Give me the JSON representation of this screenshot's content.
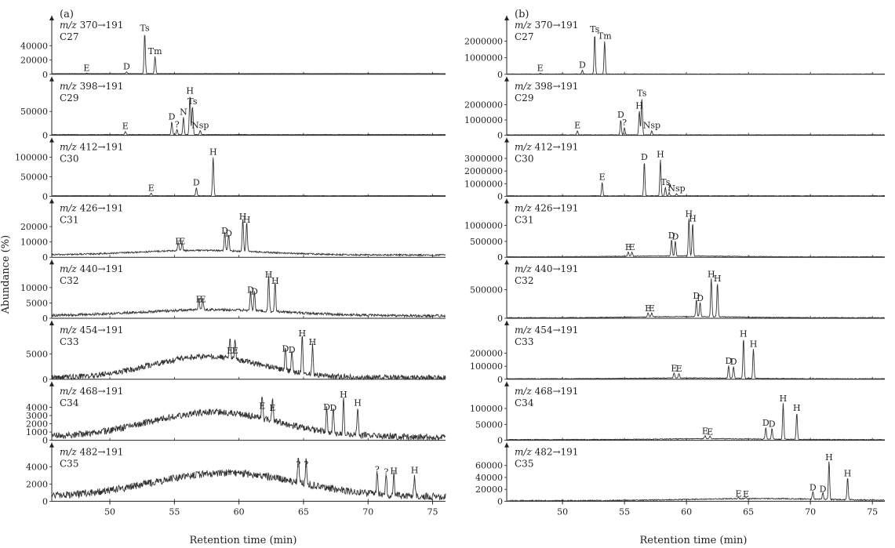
{
  "figure": {
    "x_axis_label": "Retention time (min)",
    "y_axis_label": "Abundance (%)",
    "x_range": [
      45.5,
      76
    ],
    "x_ticks": [
      50,
      55,
      60,
      65,
      70,
      75
    ]
  },
  "chart_data": [
    {
      "type": "line",
      "column": "a",
      "panel_label": "(a)",
      "transition": "370→191",
      "carbon": "C27",
      "ylim": [
        0,
        60000
      ],
      "yticks": [
        0,
        20000,
        40000
      ],
      "peaks": [
        {
          "label": "E",
          "x": 48.2,
          "y": 1500
        },
        {
          "label": "D",
          "x": 51.3,
          "y": 3500
        },
        {
          "label": "Ts",
          "x": 52.7,
          "y": 57000
        },
        {
          "label": "Tm",
          "x": 53.5,
          "y": 25000
        }
      ],
      "baseline": {
        "level": 1000,
        "hump_height": 0,
        "hump_center": 58,
        "hump_width": 8,
        "noise": 200
      }
    },
    {
      "type": "line",
      "column": "b",
      "panel_label": "(b)",
      "transition": "370→191",
      "carbon": "C27",
      "ylim": [
        0,
        2600000
      ],
      "yticks": [
        0,
        1000000,
        2000000
      ],
      "peaks": [
        {
          "label": "E",
          "x": 48.2,
          "y": 60000
        },
        {
          "label": "D",
          "x": 51.6,
          "y": 250000
        },
        {
          "label": "Ts",
          "x": 52.6,
          "y": 2400000
        },
        {
          "label": "Tm",
          "x": 53.4,
          "y": 2000000
        }
      ],
      "baseline": {
        "level": 20000,
        "hump_height": 0,
        "hump_center": 58,
        "hump_width": 8,
        "noise": 10000
      }
    },
    {
      "type": "line",
      "column": "a",
      "transition": "398→191",
      "carbon": "C29",
      "ylim": [
        0,
        90000
      ],
      "yticks": [
        0,
        50000
      ],
      "peaks": [
        {
          "label": "E",
          "x": 51.2,
          "y": 8000
        },
        {
          "label": "D",
          "x": 54.8,
          "y": 28000
        },
        {
          "label": "?",
          "x": 55.2,
          "y": 12000
        },
        {
          "label": "N",
          "x": 55.7,
          "y": 38000
        },
        {
          "label": "H",
          "x": 56.2,
          "y": 82000
        },
        {
          "label": "Ts",
          "x": 56.4,
          "y": 60000
        },
        {
          "label": "Nsp",
          "x": 57.0,
          "y": 10000
        }
      ],
      "baseline": {
        "level": 1500,
        "hump_height": 0,
        "hump_center": 58,
        "hump_width": 8,
        "noise": 400
      }
    },
    {
      "type": "line",
      "column": "b",
      "transition": "398→191",
      "carbon": "C29",
      "ylim": [
        0,
        2800000
      ],
      "yticks": [
        0,
        1000000,
        2000000
      ],
      "peaks": [
        {
          "label": "E",
          "x": 51.2,
          "y": 300000
        },
        {
          "label": "D",
          "x": 54.7,
          "y": 1000000
        },
        {
          "label": "?",
          "x": 55.0,
          "y": 500000
        },
        {
          "label": "H",
          "x": 56.2,
          "y": 1600000
        },
        {
          "label": "Ts",
          "x": 56.4,
          "y": 2400000
        },
        {
          "label": "Nsp",
          "x": 57.2,
          "y": 300000
        }
      ],
      "baseline": {
        "level": 30000,
        "hump_height": 0,
        "hump_center": 58,
        "hump_width": 8,
        "noise": 15000
      }
    },
    {
      "type": "line",
      "column": "a",
      "transition": "412→191",
      "carbon": "C30",
      "ylim": [
        0,
        110000
      ],
      "yticks": [
        0,
        50000,
        100000
      ],
      "peaks": [
        {
          "label": "E",
          "x": 53.2,
          "y": 8000
        },
        {
          "label": "D",
          "x": 56.7,
          "y": 22000
        },
        {
          "label": "H",
          "x": 58.0,
          "y": 100000
        }
      ],
      "baseline": {
        "level": 1500,
        "hump_height": 0,
        "hump_center": 58,
        "hump_width": 8,
        "noise": 400
      }
    },
    {
      "type": "line",
      "column": "b",
      "transition": "412→191",
      "carbon": "C30",
      "ylim": [
        0,
        3400000
      ],
      "yticks": [
        0,
        1000000,
        2000000,
        3000000
      ],
      "peaks": [
        {
          "label": "E",
          "x": 53.2,
          "y": 1100000
        },
        {
          "label": "D",
          "x": 56.6,
          "y": 2700000
        },
        {
          "label": "H",
          "x": 57.9,
          "y": 2900000
        },
        {
          "label": "Ts",
          "x": 58.3,
          "y": 700000
        },
        {
          "label": "?",
          "x": 58.6,
          "y": 300000
        },
        {
          "label": "Nsp",
          "x": 59.2,
          "y": 200000
        }
      ],
      "baseline": {
        "level": 40000,
        "hump_height": 0,
        "hump_center": 58,
        "hump_width": 8,
        "noise": 20000
      }
    },
    {
      "type": "line",
      "column": "a",
      "transition": "426→191",
      "carbon": "C31",
      "ylim": [
        0,
        28000
      ],
      "yticks": [
        0,
        10000,
        20000
      ],
      "peaks": [
        {
          "label": "E",
          "x": 55.3,
          "y": 7000
        },
        {
          "label": "E",
          "x": 55.6,
          "y": 7000
        },
        {
          "label": "D",
          "x": 58.9,
          "y": 14000
        },
        {
          "label": "D",
          "x": 59.2,
          "y": 12000
        },
        {
          "label": "H",
          "x": 60.3,
          "y": 23000
        },
        {
          "label": "H",
          "x": 60.6,
          "y": 21000
        }
      ],
      "baseline": {
        "level": 1500,
        "hump_height": 3000,
        "hump_center": 57,
        "hump_width": 7,
        "noise": 500
      }
    },
    {
      "type": "line",
      "column": "b",
      "transition": "426→191",
      "carbon": "C31",
      "ylim": [
        0,
        1350000
      ],
      "yticks": [
        0,
        500000,
        1000000
      ],
      "peaks": [
        {
          "label": "E",
          "x": 55.3,
          "y": 150000
        },
        {
          "label": "E",
          "x": 55.6,
          "y": 150000
        },
        {
          "label": "D",
          "x": 58.8,
          "y": 520000
        },
        {
          "label": "D",
          "x": 59.1,
          "y": 480000
        },
        {
          "label": "H",
          "x": 60.2,
          "y": 1200000
        },
        {
          "label": "H",
          "x": 60.5,
          "y": 1050000
        }
      ],
      "baseline": {
        "level": 15000,
        "hump_height": 30000,
        "hump_center": 59,
        "hump_width": 6,
        "noise": 10000
      }
    },
    {
      "type": "line",
      "column": "a",
      "transition": "440→191",
      "carbon": "C32",
      "ylim": [
        0,
        14000
      ],
      "yticks": [
        0,
        5000,
        10000
      ],
      "peaks": [
        {
          "label": "E",
          "x": 56.9,
          "y": 4500
        },
        {
          "label": "E",
          "x": 57.2,
          "y": 4500
        },
        {
          "label": "D",
          "x": 60.9,
          "y": 7500
        },
        {
          "label": "D",
          "x": 61.2,
          "y": 7000
        },
        {
          "label": "H",
          "x": 62.3,
          "y": 12500
        },
        {
          "label": "H",
          "x": 62.8,
          "y": 10500
        }
      ],
      "baseline": {
        "level": 800,
        "hump_height": 2000,
        "hump_center": 58,
        "hump_width": 8,
        "noise": 400
      }
    },
    {
      "type": "line",
      "column": "b",
      "transition": "440→191",
      "carbon": "C32",
      "ylim": [
        0,
        750000
      ],
      "yticks": [
        0,
        500000
      ],
      "peaks": [
        {
          "label": "E",
          "x": 56.9,
          "y": 80000
        },
        {
          "label": "E",
          "x": 57.2,
          "y": 80000
        },
        {
          "label": "D",
          "x": 60.8,
          "y": 300000
        },
        {
          "label": "D",
          "x": 61.1,
          "y": 260000
        },
        {
          "label": "H",
          "x": 62.0,
          "y": 680000
        },
        {
          "label": "H",
          "x": 62.5,
          "y": 600000
        }
      ],
      "baseline": {
        "level": 10000,
        "hump_height": 20000,
        "hump_center": 60,
        "hump_width": 6,
        "noise": 6000
      }
    },
    {
      "type": "line",
      "column": "a",
      "transition": "454→191",
      "carbon": "C33",
      "ylim": [
        0,
        8500
      ],
      "yticks": [
        0,
        5000
      ],
      "peaks": [
        {
          "label": "E",
          "x": 59.3,
          "y": 4600
        },
        {
          "label": "E",
          "x": 59.7,
          "y": 4600
        },
        {
          "label": "D",
          "x": 63.6,
          "y": 5000
        },
        {
          "label": "D",
          "x": 64.1,
          "y": 4800
        },
        {
          "label": "H",
          "x": 64.9,
          "y": 8000
        },
        {
          "label": "H",
          "x": 65.7,
          "y": 6300
        }
      ],
      "baseline": {
        "level": 300,
        "hump_height": 4200,
        "hump_center": 57.5,
        "hump_width": 6,
        "noise": 550
      }
    },
    {
      "type": "line",
      "column": "b",
      "transition": "454→191",
      "carbon": "C33",
      "ylim": [
        0,
        330000
      ],
      "yticks": [
        0,
        100000,
        200000
      ],
      "peaks": [
        {
          "label": "E",
          "x": 59.0,
          "y": 45000
        },
        {
          "label": "E",
          "x": 59.4,
          "y": 40000
        },
        {
          "label": "D",
          "x": 63.4,
          "y": 100000
        },
        {
          "label": "D",
          "x": 63.8,
          "y": 95000
        },
        {
          "label": "H",
          "x": 64.6,
          "y": 310000
        },
        {
          "label": "H",
          "x": 65.4,
          "y": 230000
        }
      ],
      "baseline": {
        "level": 4000,
        "hump_height": 6000,
        "hump_center": 60,
        "hump_width": 6,
        "noise": 2500
      }
    },
    {
      "type": "line",
      "column": "a",
      "transition": "468→191",
      "carbon": "C34",
      "ylim": [
        0,
        5200
      ],
      "yticks": [
        0,
        1000,
        2000,
        3000,
        4000
      ],
      "peaks": [
        {
          "label": "E",
          "x": 61.8,
          "y": 3500
        },
        {
          "label": "E",
          "x": 62.6,
          "y": 3300
        },
        {
          "label": "D",
          "x": 66.8,
          "y": 3400
        },
        {
          "label": "D",
          "x": 67.3,
          "y": 3300
        },
        {
          "label": "H",
          "x": 68.1,
          "y": 4900
        },
        {
          "label": "H",
          "x": 69.2,
          "y": 3900
        }
      ],
      "baseline": {
        "level": 400,
        "hump_height": 3000,
        "hump_center": 58,
        "hump_width": 7,
        "noise": 400
      }
    },
    {
      "type": "line",
      "column": "b",
      "transition": "468→191",
      "carbon": "C34",
      "ylim": [
        0,
        135000
      ],
      "yticks": [
        0,
        50000,
        100000
      ],
      "peaks": [
        {
          "label": "E",
          "x": 61.5,
          "y": 12000
        },
        {
          "label": "E",
          "x": 61.9,
          "y": 10000
        },
        {
          "label": "D",
          "x": 66.4,
          "y": 38000
        },
        {
          "label": "D",
          "x": 66.9,
          "y": 35000
        },
        {
          "label": "H",
          "x": 67.8,
          "y": 115000
        },
        {
          "label": "H",
          "x": 68.9,
          "y": 85000
        }
      ],
      "baseline": {
        "level": 2000,
        "hump_height": 3000,
        "hump_center": 62,
        "hump_width": 6,
        "noise": 1200
      }
    },
    {
      "type": "line",
      "column": "a",
      "transition": "482→191",
      "carbon": "C35",
      "ylim": [
        0,
        5000
      ],
      "yticks": [
        0,
        2000,
        4000
      ],
      "peaks": [
        {
          "label": "?",
          "x": 64.6,
          "y": 3700
        },
        {
          "label": "?",
          "x": 65.2,
          "y": 3700
        },
        {
          "label": "?",
          "x": 70.7,
          "y": 3100
        },
        {
          "label": "?",
          "x": 71.4,
          "y": 2800
        },
        {
          "label": "H",
          "x": 72.0,
          "y": 2900
        },
        {
          "label": "H",
          "x": 73.6,
          "y": 3000
        }
      ],
      "baseline": {
        "level": 500,
        "hump_height": 2800,
        "hump_center": 59,
        "hump_width": 8,
        "noise": 420
      }
    },
    {
      "type": "line",
      "column": "b",
      "transition": "482→191",
      "carbon": "C35",
      "ylim": [
        0,
        72000
      ],
      "yticks": [
        0,
        20000,
        40000,
        60000
      ],
      "peaks": [
        {
          "label": "E",
          "x": 64.2,
          "y": 3500
        },
        {
          "label": "E",
          "x": 64.8,
          "y": 3000
        },
        {
          "label": "D",
          "x": 70.2,
          "y": 14000
        },
        {
          "label": "D",
          "x": 71.0,
          "y": 12000
        },
        {
          "label": "H",
          "x": 71.5,
          "y": 65000
        },
        {
          "label": "H",
          "x": 73.0,
          "y": 38000
        }
      ],
      "baseline": {
        "level": 1000,
        "hump_height": 3500,
        "hump_center": 66,
        "hump_width": 8,
        "noise": 900
      }
    }
  ]
}
